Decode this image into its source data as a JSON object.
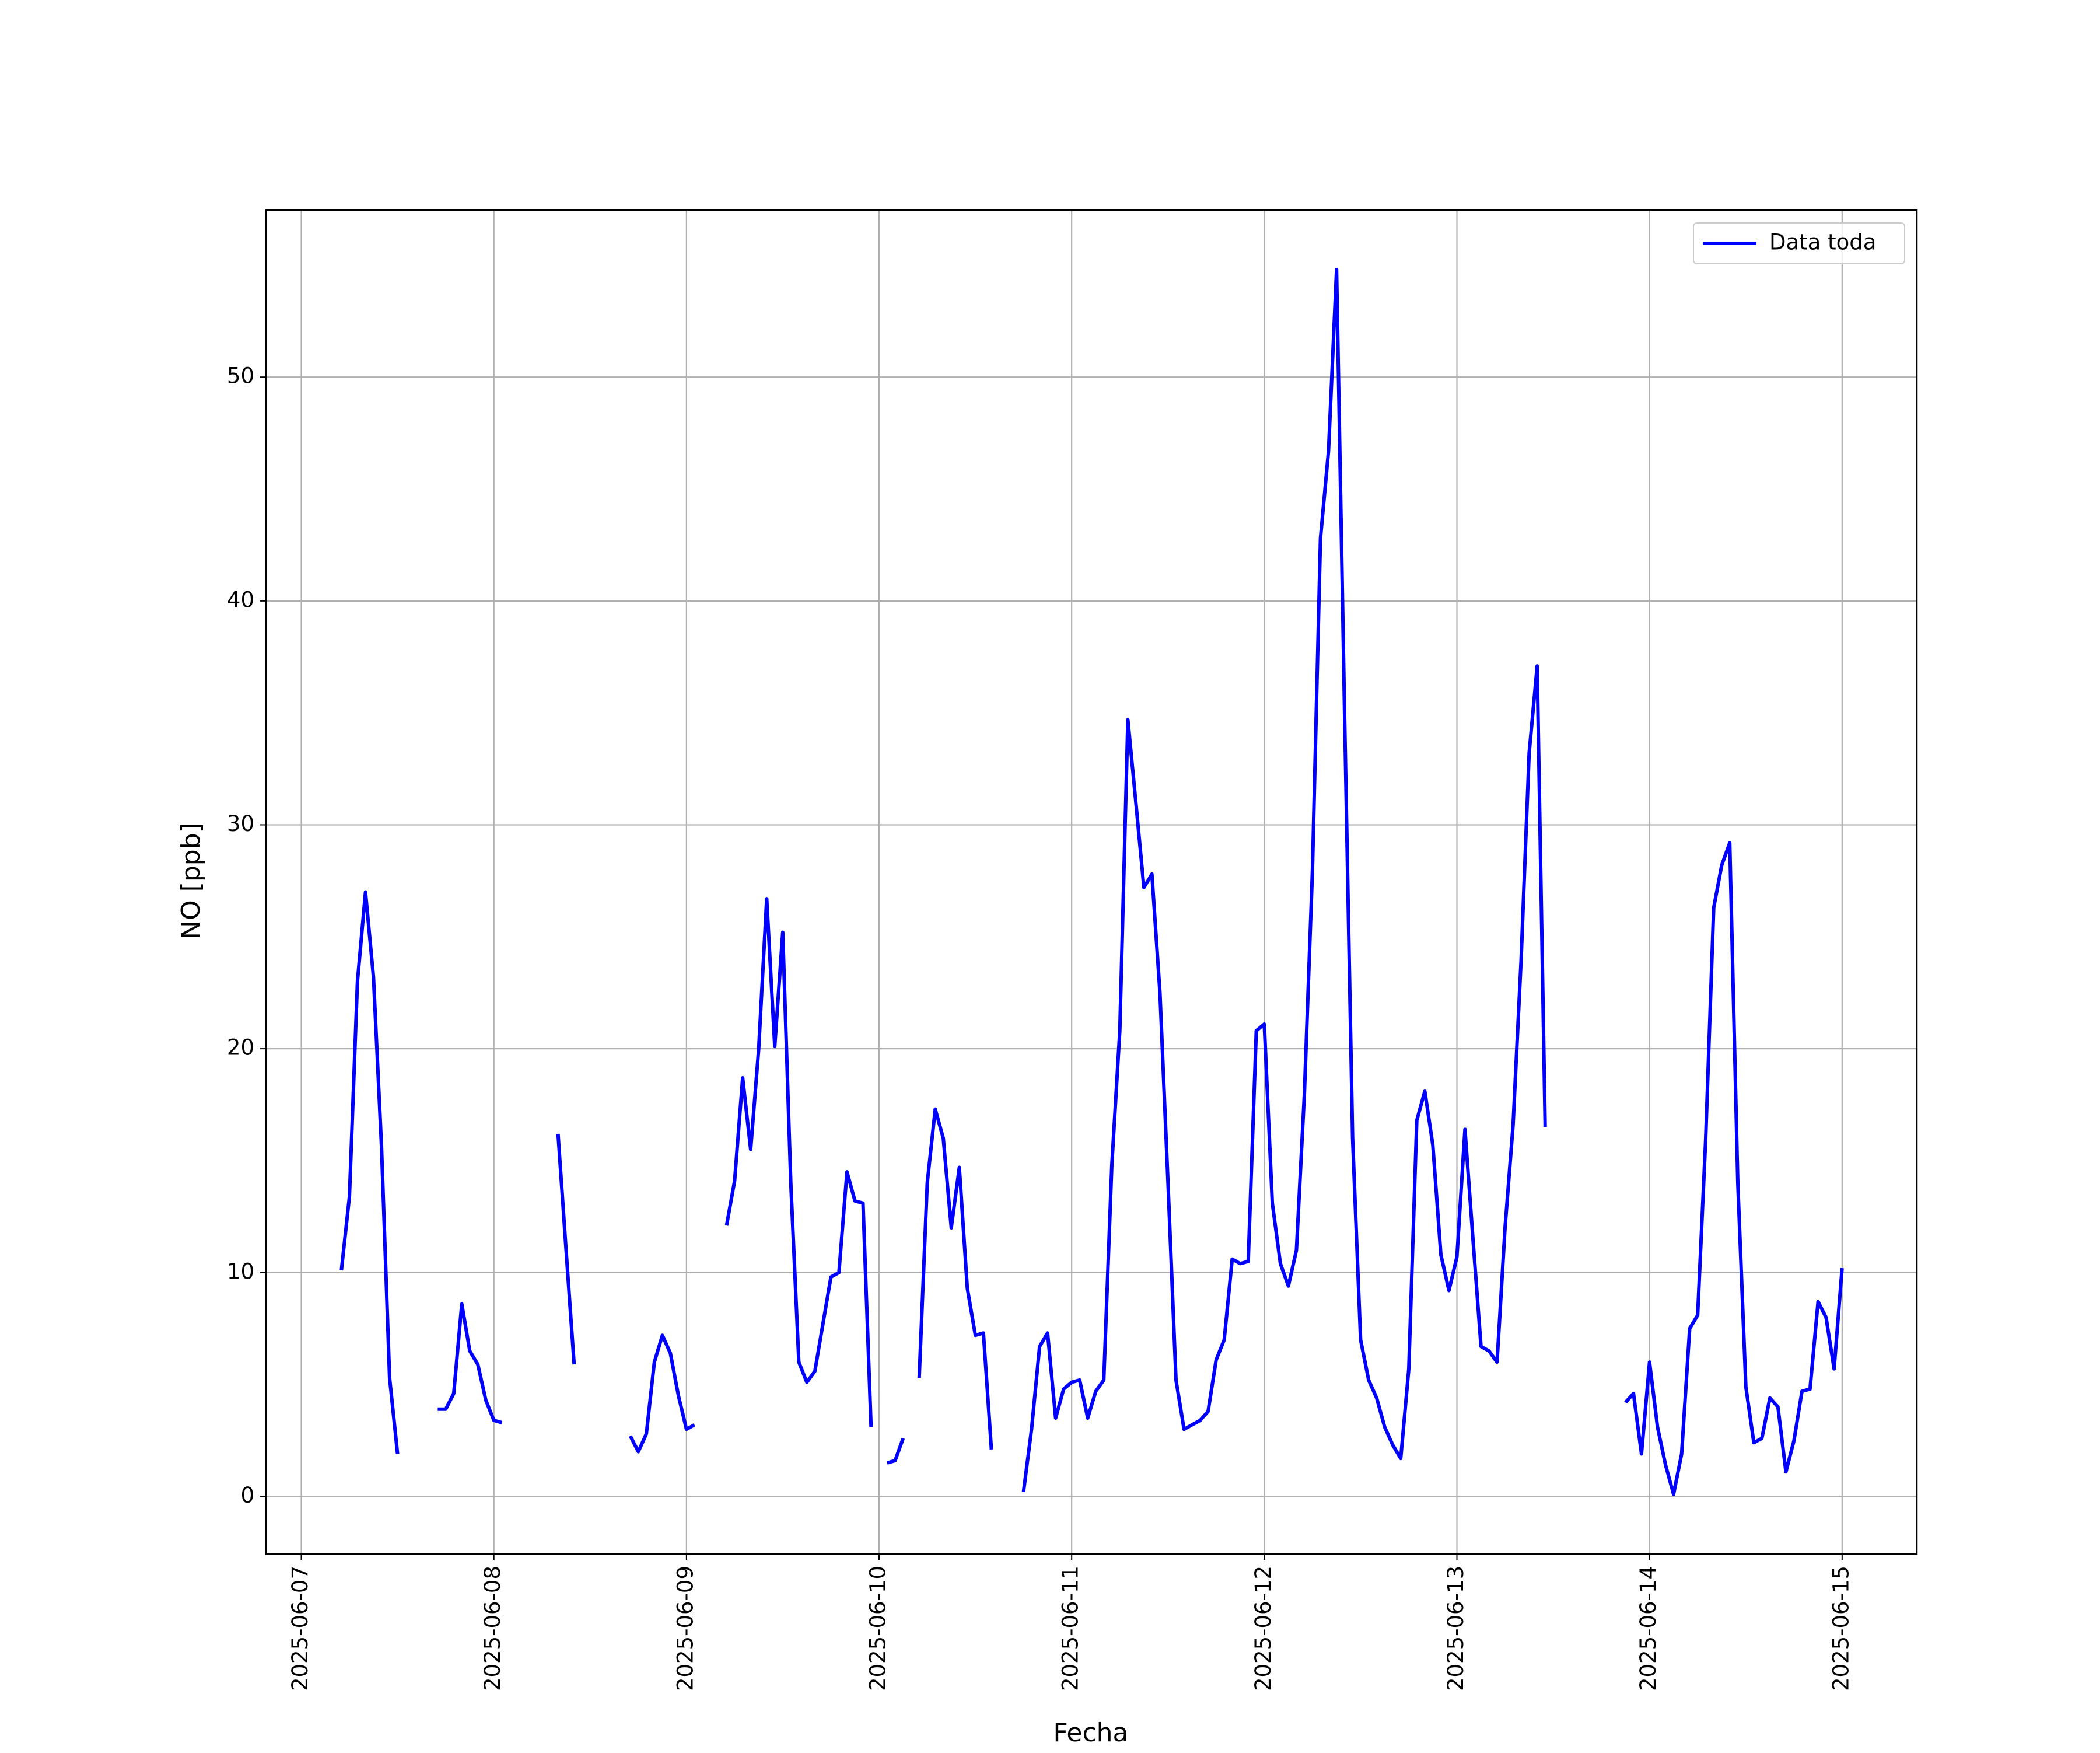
{
  "chart_data": {
    "type": "line",
    "ylabel": "NO [ppb]",
    "xlabel": "Fecha",
    "x": [
      "2025-06-07T05:00",
      "2025-06-07T06:00",
      "2025-06-07T07:00",
      "2025-06-07T08:00",
      "2025-06-07T09:00",
      "2025-06-07T10:00",
      "2025-06-07T11:00",
      "2025-06-07T12:00",
      "2025-06-07T13:00",
      "2025-06-07T17:00",
      "2025-06-07T18:00",
      "2025-06-07T19:00",
      "2025-06-07T20:00",
      "2025-06-07T21:00",
      "2025-06-07T22:00",
      "2025-06-07T23:00",
      "2025-06-08T00:00",
      "2025-06-08T01:00",
      "2025-06-08T02:00",
      "2025-06-08T08:00",
      "2025-06-08T09:00",
      "2025-06-08T10:00",
      "2025-06-08T11:00",
      "2025-06-08T17:00",
      "2025-06-08T18:00",
      "2025-06-08T19:00",
      "2025-06-08T20:00",
      "2025-06-08T21:00",
      "2025-06-08T22:00",
      "2025-06-08T23:00",
      "2025-06-09T00:00",
      "2025-06-09T01:00",
      "2025-06-09T02:00",
      "2025-06-09T05:00",
      "2025-06-09T06:00",
      "2025-06-09T07:00",
      "2025-06-09T08:00",
      "2025-06-09T09:00",
      "2025-06-09T10:00",
      "2025-06-09T11:00",
      "2025-06-09T12:00",
      "2025-06-09T13:00",
      "2025-06-09T14:00",
      "2025-06-09T15:00",
      "2025-06-09T16:00",
      "2025-06-09T17:00",
      "2025-06-09T18:00",
      "2025-06-09T19:00",
      "2025-06-09T20:00",
      "2025-06-09T21:00",
      "2025-06-09T22:00",
      "2025-06-09T23:00",
      "2025-06-10T00:00",
      "2025-06-10T01:00",
      "2025-06-10T02:00",
      "2025-06-10T03:00",
      "2025-06-10T04:00",
      "2025-06-10T05:00",
      "2025-06-10T06:00",
      "2025-06-10T07:00",
      "2025-06-10T08:00",
      "2025-06-10T09:00",
      "2025-06-10T10:00",
      "2025-06-10T11:00",
      "2025-06-10T12:00",
      "2025-06-10T13:00",
      "2025-06-10T14:00",
      "2025-06-10T15:00",
      "2025-06-10T18:00",
      "2025-06-10T19:00",
      "2025-06-10T20:00",
      "2025-06-10T21:00",
      "2025-06-10T22:00",
      "2025-06-10T23:00",
      "2025-06-11T00:00",
      "2025-06-11T01:00",
      "2025-06-11T02:00",
      "2025-06-11T03:00",
      "2025-06-11T04:00",
      "2025-06-11T05:00",
      "2025-06-11T06:00",
      "2025-06-11T07:00",
      "2025-06-11T08:00",
      "2025-06-11T09:00",
      "2025-06-11T10:00",
      "2025-06-11T11:00",
      "2025-06-11T12:00",
      "2025-06-11T13:00",
      "2025-06-11T14:00",
      "2025-06-11T15:00",
      "2025-06-11T16:00",
      "2025-06-11T17:00",
      "2025-06-11T18:00",
      "2025-06-11T19:00",
      "2025-06-11T20:00",
      "2025-06-11T21:00",
      "2025-06-11T22:00",
      "2025-06-11T23:00",
      "2025-06-12T00:00",
      "2025-06-12T01:00",
      "2025-06-12T02:00",
      "2025-06-12T03:00",
      "2025-06-12T04:00",
      "2025-06-12T05:00",
      "2025-06-12T06:00",
      "2025-06-12T07:00",
      "2025-06-12T08:00",
      "2025-06-12T09:00",
      "2025-06-12T10:00",
      "2025-06-12T11:00",
      "2025-06-12T12:00",
      "2025-06-12T13:00",
      "2025-06-12T14:00",
      "2025-06-12T15:00",
      "2025-06-12T16:00",
      "2025-06-12T17:00",
      "2025-06-12T18:00",
      "2025-06-12T19:00",
      "2025-06-12T20:00",
      "2025-06-12T21:00",
      "2025-06-12T22:00",
      "2025-06-12T23:00",
      "2025-06-13T00:00",
      "2025-06-13T01:00",
      "2025-06-13T02:00",
      "2025-06-13T03:00",
      "2025-06-13T04:00",
      "2025-06-13T05:00",
      "2025-06-13T06:00",
      "2025-06-13T07:00",
      "2025-06-13T08:00",
      "2025-06-13T09:00",
      "2025-06-13T10:00",
      "2025-06-13T11:00",
      "2025-06-13T12:00",
      "2025-06-13T21:00",
      "2025-06-13T22:00",
      "2025-06-13T23:00",
      "2025-06-14T00:00",
      "2025-06-14T01:00",
      "2025-06-14T02:00",
      "2025-06-14T03:00",
      "2025-06-14T04:00",
      "2025-06-14T05:00",
      "2025-06-14T06:00",
      "2025-06-14T07:00",
      "2025-06-14T08:00",
      "2025-06-14T09:00",
      "2025-06-14T10:00",
      "2025-06-14T11:00",
      "2025-06-14T12:00",
      "2025-06-14T13:00",
      "2025-06-14T14:00",
      "2025-06-14T15:00",
      "2025-06-14T16:00",
      "2025-06-14T17:00",
      "2025-06-14T18:00",
      "2025-06-14T19:00",
      "2025-06-14T20:00",
      "2025-06-14T21:00",
      "2025-06-14T22:00",
      "2025-06-14T23:00",
      "2025-06-15T00:00"
    ],
    "series": [
      {
        "name": "Data toda",
        "color": "#0000ff",
        "values": [
          10.1,
          13.4,
          23,
          27,
          23.2,
          15.6,
          5.3,
          1.9,
          null,
          3.9,
          3.9,
          4.6,
          8.6,
          6.5,
          5.9,
          4.3,
          3.4,
          3.3,
          null,
          16.2,
          11,
          5.9,
          null,
          2.7,
          2.0,
          2.8,
          6.0,
          7.2,
          6.4,
          4.5,
          3.0,
          3.2,
          null,
          12.1,
          14.1,
          18.7,
          15.5,
          20,
          26.7,
          20.1,
          25.2,
          14,
          6.0,
          5.1,
          5.6,
          7.7,
          9.8,
          10,
          14.5,
          13.2,
          13.1,
          3.1,
          null,
          1.5,
          1.6,
          2.6,
          null,
          5.3,
          14,
          17.3,
          16,
          12,
          14.7,
          9.3,
          7.2,
          7.3,
          2.1,
          null,
          0.2,
          3,
          6.7,
          7.3,
          3.5,
          4.8,
          5.1,
          5.2,
          3.5,
          4.7,
          5.2,
          14.8,
          20.8,
          34.7,
          31,
          27.2,
          27.8,
          22.5,
          14,
          5.2,
          3.0,
          3.2,
          3.4,
          3.8,
          6.1,
          7.0,
          10.6,
          10.4,
          10.5,
          20.8,
          21.1,
          13.1,
          10.4,
          9.4,
          11,
          18,
          28,
          42.8,
          46.7,
          54.8,
          35,
          16,
          7.0,
          5.2,
          4.4,
          3.1,
          2.3,
          1.7,
          5.7,
          16.8,
          18.1,
          15.7,
          10.8,
          9.2,
          10.7,
          16.4,
          11.5,
          6.7,
          6.5,
          6.0,
          12,
          16.6,
          24,
          33.2,
          37.1,
          16.5,
          null,
          4.2,
          4.6,
          1.9,
          6.0,
          3.1,
          1.4,
          0.1,
          1.9,
          7.5,
          8.1,
          16,
          26.3,
          28.2,
          29.2,
          14,
          4.9,
          2.4,
          2.6,
          4.4,
          4.0,
          1.1,
          2.5,
          4.7,
          4.8,
          8.7,
          8.0,
          5.7,
          10.2
        ]
      }
    ],
    "xlim": [
      "2025-06-06T19:36",
      "2025-06-15T09:19"
    ],
    "xticks": [
      "2025-06-07",
      "2025-06-08",
      "2025-06-09",
      "2025-06-10",
      "2025-06-11",
      "2025-06-12",
      "2025-06-13",
      "2025-06-14",
      "2025-06-15"
    ],
    "ylim": [
      -2.57,
      57.46
    ],
    "yticks": [
      0,
      10,
      20,
      30,
      40,
      50
    ],
    "grid": true,
    "legend": "upper right"
  }
}
